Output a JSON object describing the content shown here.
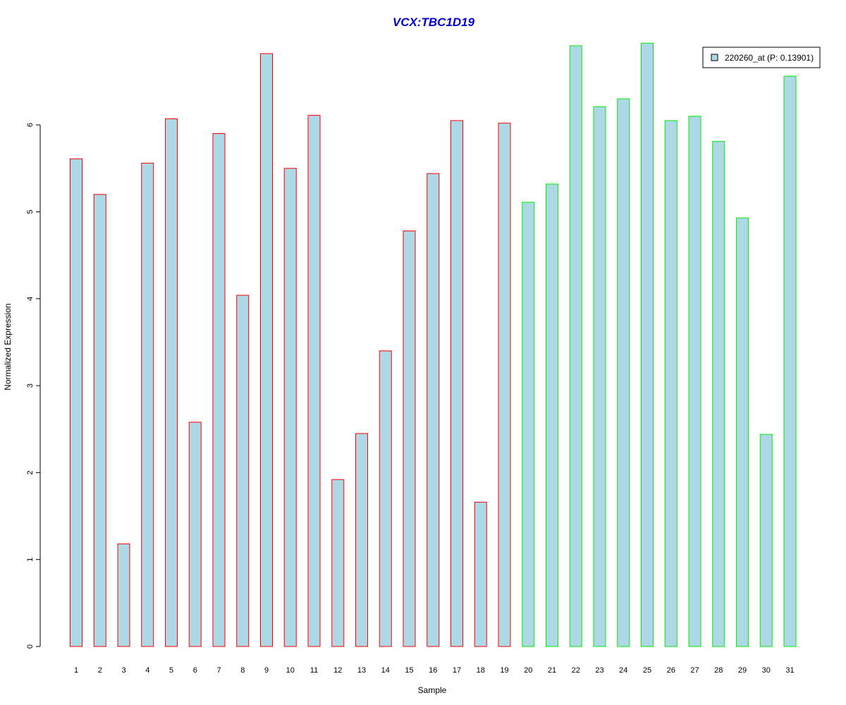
{
  "chart_data": {
    "type": "bar",
    "title": "VCX:TBC1D19",
    "xlabel": "Sample",
    "ylabel": "Normalized Expression",
    "categories": [
      "1",
      "2",
      "3",
      "4",
      "5",
      "6",
      "7",
      "8",
      "9",
      "10",
      "11",
      "12",
      "13",
      "14",
      "15",
      "16",
      "17",
      "18",
      "19",
      "20",
      "21",
      "22",
      "23",
      "24",
      "25",
      "26",
      "27",
      "28",
      "29",
      "30",
      "31"
    ],
    "values": [
      5.61,
      5.2,
      1.18,
      5.56,
      6.07,
      2.58,
      5.9,
      4.04,
      6.82,
      5.5,
      6.11,
      1.92,
      2.45,
      3.4,
      4.78,
      5.44,
      6.05,
      1.66,
      6.02,
      5.11,
      5.32,
      6.91,
      6.21,
      6.3,
      6.94,
      6.05,
      6.1,
      5.81,
      4.93,
      2.44,
      6.56
    ],
    "groups": [
      1,
      1,
      1,
      1,
      1,
      1,
      1,
      1,
      1,
      1,
      1,
      1,
      1,
      1,
      1,
      1,
      1,
      1,
      1,
      2,
      2,
      2,
      2,
      2,
      2,
      2,
      2,
      2,
      2,
      2,
      2
    ],
    "group_border_colors": {
      "1": "#ff0000",
      "2": "#00ee00"
    },
    "bar_fill": "#add8e6",
    "title_color": "#0000cc",
    "ylim": [
      0,
      6.95
    ],
    "yticks": [
      0,
      1,
      2,
      3,
      4,
      5,
      6
    ],
    "grid": false,
    "legend": {
      "placement": "top-right",
      "entries": [
        {
          "label": "220260_at (P: 0.13901)",
          "color": "#add8e6"
        }
      ]
    }
  }
}
